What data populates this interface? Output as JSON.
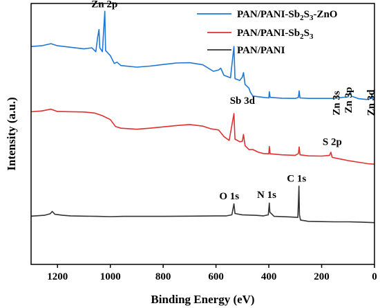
{
  "chart_data": {
    "type": "line",
    "title": "",
    "xlabel": "Binding Energy (eV)",
    "ylabel": "Intensity (a.u.)",
    "xlim": [
      1300,
      0
    ],
    "x_reversed": true,
    "xticks": [
      1200,
      1000,
      800,
      600,
      400,
      200,
      0
    ],
    "y_ticks_shown": false,
    "grid": false,
    "legend": {
      "placement": "top-right",
      "entries": [
        {
          "label_parts": [
            {
              "t": "PAN/PANI-Sb"
            },
            {
              "t": "2",
              "sub": true
            },
            {
              "t": "S"
            },
            {
              "t": "3",
              "sub": true
            },
            {
              "t": "-ZnO"
            }
          ],
          "color": "#1f77d4"
        },
        {
          "label_parts": [
            {
              "t": "PAN/PANI-Sb"
            },
            {
              "t": "2",
              "sub": true
            },
            {
              "t": "S"
            },
            {
              "t": "3",
              "sub": true
            }
          ],
          "color": "#e03030"
        },
        {
          "label_parts": [
            {
              "t": "PAN/PANI"
            }
          ],
          "color": "#333333"
        }
      ]
    },
    "series": [
      {
        "name": "PAN/PANI-Sb2S3-ZnO",
        "color": "#1f77d4",
        "points": [
          [
            1300,
            0.835
          ],
          [
            1260,
            0.838
          ],
          [
            1225,
            0.846
          ],
          [
            1200,
            0.838
          ],
          [
            1150,
            0.832
          ],
          [
            1100,
            0.826
          ],
          [
            1070,
            0.83
          ],
          [
            1055,
            0.815
          ],
          [
            1048,
            0.87
          ],
          [
            1043,
            0.9
          ],
          [
            1040,
            0.83
          ],
          [
            1030,
            0.815
          ],
          [
            1021,
            0.97
          ],
          [
            1018,
            0.82
          ],
          [
            1000,
            0.8
          ],
          [
            985,
            0.77
          ],
          [
            975,
            0.775
          ],
          [
            960,
            0.762
          ],
          [
            900,
            0.756
          ],
          [
            850,
            0.76
          ],
          [
            800,
            0.766
          ],
          [
            750,
            0.772
          ],
          [
            700,
            0.773
          ],
          [
            650,
            0.765
          ],
          [
            610,
            0.74
          ],
          [
            590,
            0.745
          ],
          [
            582,
            0.752
          ],
          [
            570,
            0.725
          ],
          [
            545,
            0.715
          ],
          [
            532,
            0.835
          ],
          [
            528,
            0.712
          ],
          [
            510,
            0.705
          ],
          [
            500,
            0.718
          ],
          [
            496,
            0.735
          ],
          [
            490,
            0.69
          ],
          [
            475,
            0.675
          ],
          [
            470,
            0.66
          ],
          [
            460,
            0.645
          ],
          [
            420,
            0.64
          ],
          [
            400,
            0.638
          ],
          [
            398,
            0.662
          ],
          [
            395,
            0.64
          ],
          [
            350,
            0.637
          ],
          [
            300,
            0.636
          ],
          [
            288,
            0.64
          ],
          [
            285,
            0.665
          ],
          [
            282,
            0.638
          ],
          [
            250,
            0.636
          ],
          [
            200,
            0.636
          ],
          [
            160,
            0.636
          ],
          [
            140,
            0.638
          ],
          [
            120,
            0.64
          ],
          [
            100,
            0.642
          ],
          [
            91,
            0.664
          ],
          [
            88,
            0.645
          ],
          [
            60,
            0.635
          ],
          [
            30,
            0.632
          ],
          [
            12,
            0.636
          ],
          [
            10,
            0.654
          ],
          [
            8,
            0.635
          ],
          [
            0,
            0.632
          ]
        ]
      },
      {
        "name": "PAN/PANI-Sb2S3",
        "color": "#e03030",
        "points": [
          [
            1300,
            0.585
          ],
          [
            1260,
            0.588
          ],
          [
            1225,
            0.595
          ],
          [
            1200,
            0.586
          ],
          [
            1100,
            0.584
          ],
          [
            1060,
            0.58
          ],
          [
            1030,
            0.57
          ],
          [
            1000,
            0.555
          ],
          [
            980,
            0.528
          ],
          [
            960,
            0.522
          ],
          [
            900,
            0.518
          ],
          [
            850,
            0.522
          ],
          [
            800,
            0.527
          ],
          [
            750,
            0.532
          ],
          [
            700,
            0.536
          ],
          [
            650,
            0.53
          ],
          [
            620,
            0.52
          ],
          [
            590,
            0.515
          ],
          [
            570,
            0.49
          ],
          [
            550,
            0.475
          ],
          [
            532,
            0.578
          ],
          [
            528,
            0.48
          ],
          [
            510,
            0.47
          ],
          [
            500,
            0.472
          ],
          [
            496,
            0.498
          ],
          [
            490,
            0.455
          ],
          [
            475,
            0.44
          ],
          [
            460,
            0.44
          ],
          [
            440,
            0.43
          ],
          [
            420,
            0.425
          ],
          [
            400,
            0.424
          ],
          [
            398,
            0.452
          ],
          [
            395,
            0.424
          ],
          [
            350,
            0.42
          ],
          [
            300,
            0.418
          ],
          [
            288,
            0.425
          ],
          [
            285,
            0.45
          ],
          [
            282,
            0.42
          ],
          [
            250,
            0.416
          ],
          [
            200,
            0.415
          ],
          [
            170,
            0.418
          ],
          [
            165,
            0.43
          ],
          [
            160,
            0.41
          ],
          [
            130,
            0.404
          ],
          [
            100,
            0.398
          ],
          [
            50,
            0.39
          ],
          [
            25,
            0.386
          ],
          [
            0,
            0.384
          ]
        ]
      },
      {
        "name": "PAN/PANI",
        "color": "#333333",
        "points": [
          [
            1300,
            0.185
          ],
          [
            1250,
            0.188
          ],
          [
            1228,
            0.194
          ],
          [
            1220,
            0.203
          ],
          [
            1210,
            0.192
          ],
          [
            1180,
            0.188
          ],
          [
            1150,
            0.186
          ],
          [
            1100,
            0.185
          ],
          [
            1050,
            0.184
          ],
          [
            1000,
            0.183
          ],
          [
            950,
            0.184
          ],
          [
            900,
            0.184
          ],
          [
            800,
            0.184
          ],
          [
            700,
            0.185
          ],
          [
            600,
            0.186
          ],
          [
            560,
            0.186
          ],
          [
            540,
            0.19
          ],
          [
            532,
            0.232
          ],
          [
            528,
            0.195
          ],
          [
            500,
            0.19
          ],
          [
            450,
            0.188
          ],
          [
            420,
            0.186
          ],
          [
            402,
            0.19
          ],
          [
            398,
            0.235
          ],
          [
            396,
            0.2
          ],
          [
            380,
            0.184
          ],
          [
            320,
            0.182
          ],
          [
            290,
            0.18
          ],
          [
            286,
            0.3
          ],
          [
            284,
            0.19
          ],
          [
            280,
            0.17
          ],
          [
            250,
            0.165
          ],
          [
            200,
            0.164
          ],
          [
            150,
            0.163
          ],
          [
            100,
            0.163
          ],
          [
            50,
            0.162
          ],
          [
            0,
            0.16
          ]
        ]
      }
    ],
    "annotations": [
      {
        "text": "Zn 2p",
        "x": 1022,
        "y": 0.985,
        "rotate": 0
      },
      {
        "text": "Sb 3d",
        "x": 500,
        "y": 0.615,
        "rotate": 0
      },
      {
        "text": "S 2p",
        "x": 160,
        "y": 0.458,
        "rotate": 0
      },
      {
        "text": "O 1s",
        "x": 550,
        "y": 0.25,
        "rotate": 0
      },
      {
        "text": "N 1s",
        "x": 408,
        "y": 0.255,
        "rotate": 0
      },
      {
        "text": "C 1s",
        "x": 295,
        "y": 0.317,
        "rotate": 0
      },
      {
        "text": "Zn 3s",
        "x": 145,
        "y": 0.665,
        "rotate": -90
      },
      {
        "text": "Zn 3p",
        "x": 100,
        "y": 0.68,
        "rotate": -90
      },
      {
        "text": "Zn 3d",
        "x": 15,
        "y": 0.67,
        "rotate": -90
      }
    ]
  }
}
